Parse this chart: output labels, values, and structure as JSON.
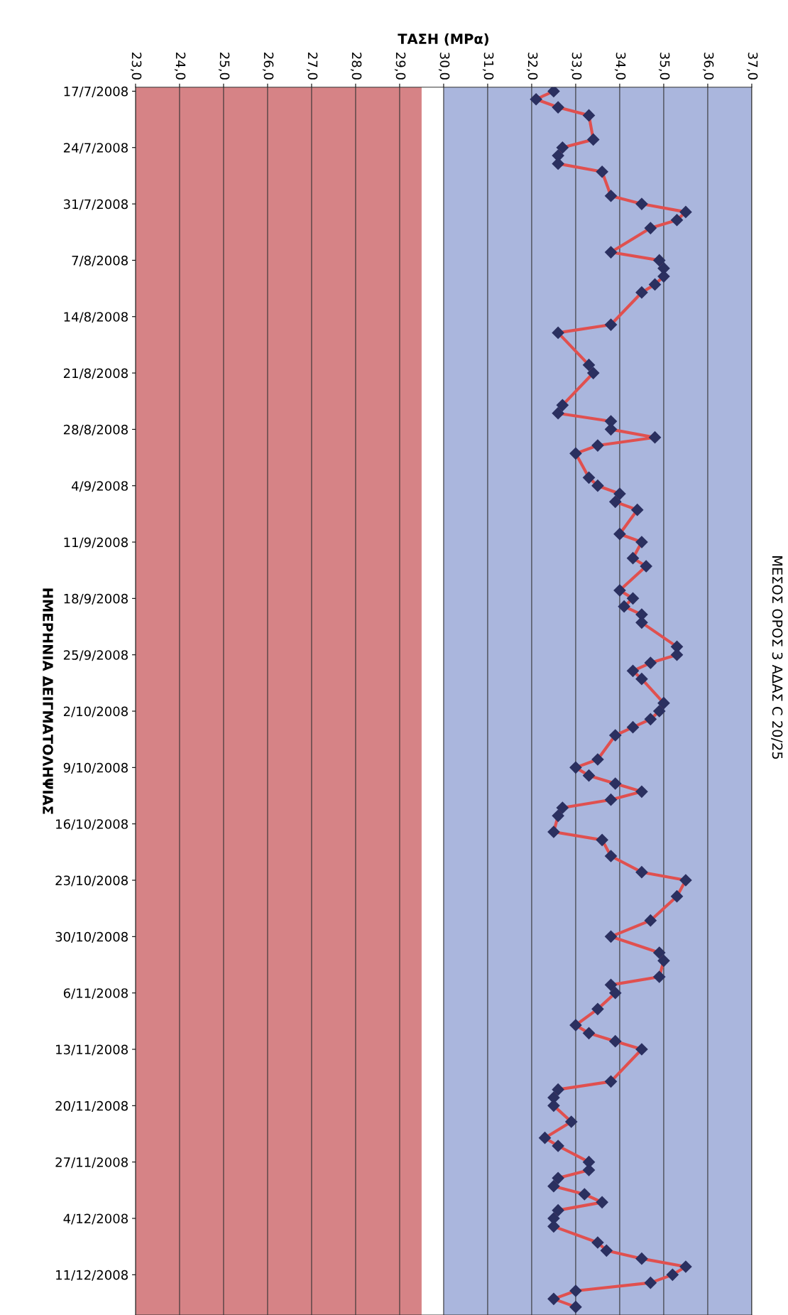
{
  "chart_data": {
    "type": "line",
    "title": "ΜΕΣΟΣ ΟΡΟΣ 3 ΑΔΑΣ C 20/25",
    "xlabel": "ΤΑΣΗ (ΜΡα)",
    "ylabel": "ΗΜΕΡΗΝΙΑ ΔΕΙΓΜΑΤΟΛΗΨΙΑΣ",
    "orientation": "horizontal",
    "x": [
      "2008-07-17",
      "2008-07-18",
      "2008-07-19",
      "2008-07-20",
      "2008-07-23",
      "2008-07-24",
      "2008-07-25",
      "2008-07-26",
      "2008-07-27",
      "2008-07-30",
      "2008-07-31",
      "2008-08-01",
      "2008-08-02",
      "2008-08-03",
      "2008-08-06",
      "2008-08-07",
      "2008-08-08",
      "2008-08-09",
      "2008-08-10",
      "2008-08-11",
      "2008-08-15",
      "2008-08-16",
      "2008-08-20",
      "2008-08-21",
      "2008-08-25",
      "2008-08-26",
      "2008-08-27",
      "2008-08-28",
      "2008-08-29",
      "2008-08-30",
      "2008-08-31",
      "2008-09-03",
      "2008-09-04",
      "2008-09-05",
      "2008-09-06",
      "2008-09-07",
      "2008-09-10",
      "2008-09-11",
      "2008-09-13",
      "2008-09-14",
      "2008-09-17",
      "2008-09-18",
      "2008-09-19",
      "2008-09-20",
      "2008-09-21",
      "2008-09-24",
      "2008-09-25",
      "2008-09-26",
      "2008-09-27",
      "2008-09-28",
      "2008-10-01",
      "2008-10-02",
      "2008-10-03",
      "2008-10-04",
      "2008-10-05",
      "2008-10-08",
      "2008-10-09",
      "2008-10-10",
      "2008-10-11",
      "2008-10-12",
      "2008-10-13",
      "2008-10-14",
      "2008-10-15",
      "2008-10-17",
      "2008-10-18",
      "2008-10-20",
      "2008-10-22",
      "2008-10-23",
      "2008-10-25",
      "2008-10-28",
      "2008-10-30",
      "2008-11-01",
      "2008-11-02",
      "2008-11-04",
      "2008-11-05",
      "2008-11-06",
      "2008-11-08",
      "2008-11-10",
      "2008-11-11",
      "2008-11-12",
      "2008-11-13",
      "2008-11-17",
      "2008-11-18",
      "2008-11-19",
      "2008-11-20",
      "2008-11-22",
      "2008-11-24",
      "2008-11-25",
      "2008-11-27",
      "2008-11-28",
      "2008-11-29",
      "2008-11-30",
      "2008-12-01",
      "2008-12-02",
      "2008-12-03",
      "2008-12-04",
      "2008-12-05",
      "2008-12-07",
      "2008-12-08",
      "2008-12-09",
      "2008-12-10",
      "2008-12-11",
      "2008-12-12",
      "2008-12-13",
      "2008-12-14",
      "2008-12-15"
    ],
    "series": [
      {
        "color": "#e0504f",
        "values": [
          32.5,
          32.1,
          32.6,
          33.3,
          33.4,
          32.7,
          32.6,
          32.6,
          33.6,
          33.8,
          34.5,
          35.5,
          35.3,
          34.7,
          33.8,
          34.9,
          35.0,
          35.0,
          34.8,
          34.5,
          33.8,
          32.6,
          33.3,
          33.4,
          32.7,
          32.6,
          33.8,
          33.8,
          34.8,
          33.5,
          33.0,
          33.3,
          33.5,
          34.0,
          33.9,
          34.4,
          34.0,
          34.5,
          34.3,
          34.6,
          34.0,
          34.3,
          34.1,
          34.5,
          34.5,
          35.3,
          35.3,
          34.7,
          34.3,
          34.5,
          35.0,
          34.9,
          34.7,
          34.3,
          33.9,
          33.5,
          33.0,
          33.3,
          33.9,
          34.5,
          33.8,
          32.7,
          32.6,
          32.5,
          33.6,
          33.8,
          34.5,
          35.5,
          35.3,
          34.7,
          33.8,
          34.9,
          35.0,
          34.9,
          33.8,
          33.9,
          33.5,
          33.0,
          33.3,
          33.9,
          34.5,
          33.8,
          32.6,
          32.5,
          32.5,
          32.9,
          32.3,
          32.6,
          33.3,
          33.3,
          32.6,
          32.5,
          33.2,
          33.6,
          32.6,
          32.5,
          32.5,
          33.5,
          33.7,
          34.5,
          35.5,
          35.2,
          34.7,
          33.0,
          32.5,
          33.0
        ]
      }
    ],
    "marker": "diamond",
    "line_style": "solid",
    "xlim": [
      23,
      37
    ],
    "xticks": [
      {
        "value": 23,
        "label": "23,0"
      },
      {
        "value": 24,
        "label": "24,0"
      },
      {
        "value": 25,
        "label": "25,0"
      },
      {
        "value": 26,
        "label": "26,0"
      },
      {
        "value": 27,
        "label": "27,0"
      },
      {
        "value": 28,
        "label": "28,0"
      },
      {
        "value": 29,
        "label": "29,0"
      },
      {
        "value": 30,
        "label": "30,0"
      },
      {
        "value": 31,
        "label": "31,0"
      },
      {
        "value": 32,
        "label": "32,0"
      },
      {
        "value": 33,
        "label": "33,0"
      },
      {
        "value": 34,
        "label": "34,0"
      },
      {
        "value": 35,
        "label": "35,0"
      },
      {
        "value": 36,
        "label": "36,0"
      },
      {
        "value": 37,
        "label": "37,0"
      }
    ],
    "ylim": [
      "2008-12-16",
      "2008-07-16T12:00"
    ],
    "yticks": [
      {
        "value": "2008-07-17",
        "label": "17/7/2008"
      },
      {
        "value": "2008-07-24",
        "label": "24/7/2008"
      },
      {
        "value": "2008-07-31",
        "label": "31/7/2008"
      },
      {
        "value": "2008-08-07",
        "label": "7/8/2008"
      },
      {
        "value": "2008-08-14",
        "label": "14/8/2008"
      },
      {
        "value": "2008-08-21",
        "label": "21/8/2008"
      },
      {
        "value": "2008-08-28",
        "label": "28/8/2008"
      },
      {
        "value": "2008-09-04",
        "label": "4/9/2008"
      },
      {
        "value": "2008-09-11",
        "label": "11/9/2008"
      },
      {
        "value": "2008-09-18",
        "label": "18/9/2008"
      },
      {
        "value": "2008-09-25",
        "label": "25/9/2008"
      },
      {
        "value": "2008-10-02",
        "label": "2/10/2008"
      },
      {
        "value": "2008-10-09",
        "label": "9/10/2008"
      },
      {
        "value": "2008-10-16",
        "label": "16/10/2008"
      },
      {
        "value": "2008-10-23",
        "label": "23/10/2008"
      },
      {
        "value": "2008-10-30",
        "label": "30/10/2008"
      },
      {
        "value": "2008-11-06",
        "label": "6/11/2008"
      },
      {
        "value": "2008-11-13",
        "label": "13/11/2008"
      },
      {
        "value": "2008-11-20",
        "label": "20/11/2008"
      },
      {
        "value": "2008-11-27",
        "label": "27/11/2008"
      },
      {
        "value": "2008-12-04",
        "label": "4/12/2008"
      },
      {
        "value": "2008-12-11",
        "label": "11/12/2008"
      }
    ],
    "grid": "x",
    "legend": false,
    "bands": [
      {
        "axis": "x",
        "from": 23,
        "to": 29.5,
        "color": "#c85a5e"
      },
      {
        "axis": "x",
        "from": 30,
        "to": 37,
        "color": "#8e9dd2"
      }
    ]
  }
}
